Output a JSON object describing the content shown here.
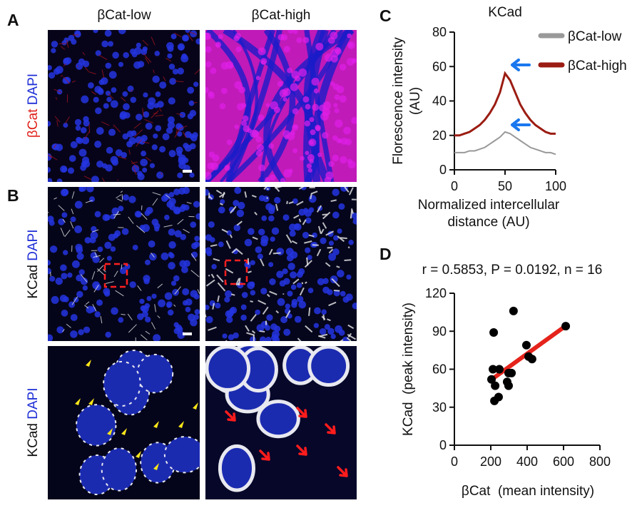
{
  "panel_labels": [
    "A",
    "B",
    "C",
    "D"
  ],
  "columns": [
    "βCat-low",
    "βCat-high"
  ],
  "row_labels": [
    {
      "stain": "βCat",
      "counter": "DAPI"
    },
    {
      "stain": "KCad",
      "counter": "DAPI"
    },
    {
      "stain": "KCad",
      "counter": "DAPI"
    }
  ],
  "chart_data": [
    {
      "type": "line",
      "title": "KCad",
      "ylabel": [
        "Florescence intensity",
        "(AU)"
      ],
      "xlabel": [
        "Normalized intercellular",
        "distance (AU)"
      ],
      "xlim": [
        0,
        100
      ],
      "xticks": [
        0,
        50,
        100
      ],
      "ylim": [
        0,
        80
      ],
      "yticks": [
        0,
        20,
        40,
        60,
        80
      ],
      "x": [
        0,
        5,
        10,
        15,
        20,
        25,
        30,
        35,
        40,
        45,
        50,
        55,
        60,
        65,
        70,
        75,
        80,
        85,
        90,
        95,
        100
      ],
      "series": [
        {
          "name": "βCat-low",
          "color": "#999999",
          "values": [
            10,
            10,
            10,
            11,
            11,
            12,
            13,
            15,
            17,
            19,
            22,
            21,
            19,
            17,
            15,
            13,
            12,
            11,
            10,
            10,
            9
          ]
        },
        {
          "name": "βCat-high",
          "color": "#9b1c12",
          "values": [
            20,
            20,
            21,
            22,
            24,
            26,
            29,
            33,
            38,
            45,
            56,
            52,
            45,
            38,
            33,
            29,
            26,
            24,
            22,
            21,
            21
          ]
        }
      ]
    },
    {
      "type": "scatter",
      "title": "r = 0.5853, P = 0.0192, n = 16",
      "ylabel": "KCad  (peak intensity)",
      "xlabel": "βCat  (mean intensity)",
      "xlim": [
        0,
        800
      ],
      "xticks": [
        0,
        200,
        400,
        600,
        800
      ],
      "ylim": [
        0,
        120
      ],
      "yticks": [
        0,
        30,
        60,
        90,
        120
      ],
      "color": "#000000",
      "x": [
        216,
        325,
        612,
        396,
        408,
        427,
        212,
        247,
        298,
        314,
        204,
        290,
        298,
        224,
        243,
        220
      ],
      "values": [
        89,
        106,
        94,
        79,
        70,
        68,
        60,
        60,
        57,
        57,
        52,
        50,
        47,
        47,
        38,
        35
      ],
      "fit": {
        "x": [
          215,
          600
        ],
        "y": [
          53,
          93
        ],
        "color": "#e5231b"
      }
    }
  ]
}
